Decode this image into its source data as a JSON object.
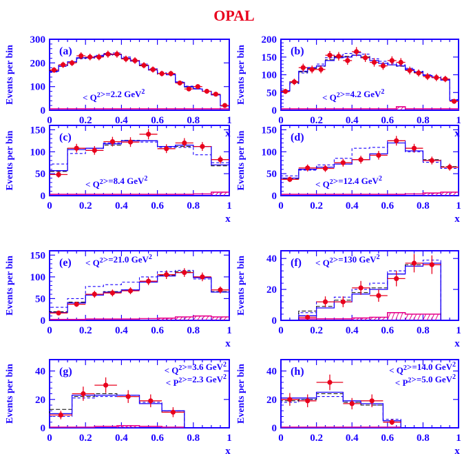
{
  "figure": {
    "title": "OPAL",
    "colors": {
      "frame": "#1a00ff",
      "data": "#e8001c",
      "mc_solid": "#1a00ff",
      "mc_dashed": "#1a00ff",
      "mc_black": "#000000",
      "background": "#e6008a"
    }
  },
  "chart_data": [
    {
      "type": "histogram",
      "panel": "(a)",
      "annotation": "< Q²>=2.2 GeV²",
      "xlabel": "x",
      "ylabel": "Events per bin",
      "xlim": [
        0,
        1
      ],
      "ylim": [
        0,
        300
      ],
      "xticks": [
        "0",
        "0.2",
        "0.4",
        "0.6",
        "0.8",
        "1"
      ],
      "yticks": [
        "0",
        "100",
        "200",
        "300"
      ],
      "ytick_values": [
        0,
        100,
        200,
        300
      ],
      "bin_edges": [
        0,
        0.05,
        0.1,
        0.15,
        0.2,
        0.25,
        0.3,
        0.35,
        0.4,
        0.45,
        0.5,
        0.55,
        0.6,
        0.65,
        0.7,
        0.75,
        0.8,
        0.85,
        0.9,
        0.95,
        1.0
      ],
      "data": {
        "x": [
          0.025,
          0.075,
          0.125,
          0.175,
          0.225,
          0.275,
          0.325,
          0.375,
          0.425,
          0.475,
          0.525,
          0.575,
          0.625,
          0.675,
          0.725,
          0.775,
          0.825,
          0.875,
          0.925,
          0.975
        ],
        "y": [
          170,
          192,
          200,
          230,
          225,
          225,
          237,
          237,
          217,
          210,
          190,
          172,
          155,
          155,
          115,
          90,
          100,
          80,
          68,
          20
        ],
        "yerr": [
          12,
          13,
          13,
          15,
          14,
          14,
          15,
          15,
          14,
          14,
          13,
          13,
          12,
          12,
          10,
          9,
          10,
          9,
          8,
          4
        ]
      },
      "mc_solid": [
        165,
        190,
        205,
        222,
        222,
        228,
        235,
        235,
        220,
        208,
        190,
        170,
        155,
        150,
        118,
        100,
        90,
        80,
        65,
        18
      ],
      "mc_dashed": [
        162,
        185,
        205,
        218,
        220,
        232,
        240,
        242,
        225,
        212,
        195,
        175,
        158,
        152,
        120,
        102,
        92,
        80,
        66,
        20
      ],
      "mc_black": [
        168,
        188,
        202,
        220,
        224,
        226,
        232,
        236,
        218,
        208,
        188,
        170,
        152,
        150,
        116,
        98,
        90,
        80,
        66,
        19
      ],
      "background": [
        6,
        6,
        6,
        6,
        6,
        6,
        6,
        6,
        6,
        6,
        6,
        6,
        6,
        6,
        6,
        6,
        6,
        6,
        6,
        6
      ]
    },
    {
      "type": "histogram",
      "panel": "(b)",
      "annotation": "< Q²>=4.2 GeV²",
      "xlabel": "x",
      "ylabel": "Events per bin",
      "xlim": [
        0,
        1
      ],
      "ylim": [
        0,
        200
      ],
      "xticks": [
        "0",
        "0.2",
        "0.4",
        "0.6",
        "0.8",
        "1"
      ],
      "yticks": [
        "0",
        "50",
        "100",
        "150",
        "200"
      ],
      "ytick_values": [
        0,
        50,
        100,
        150,
        200
      ],
      "bin_edges": [
        0,
        0.05,
        0.1,
        0.15,
        0.2,
        0.25,
        0.3,
        0.35,
        0.4,
        0.45,
        0.5,
        0.55,
        0.6,
        0.65,
        0.7,
        0.75,
        0.8,
        0.85,
        0.9,
        0.95,
        1.0
      ],
      "data": {
        "x": [
          0.025,
          0.075,
          0.125,
          0.175,
          0.225,
          0.275,
          0.325,
          0.375,
          0.425,
          0.475,
          0.525,
          0.575,
          0.625,
          0.675,
          0.725,
          0.775,
          0.825,
          0.875,
          0.925,
          0.975
        ],
        "y": [
          53,
          80,
          120,
          115,
          115,
          155,
          152,
          140,
          165,
          148,
          135,
          125,
          140,
          135,
          112,
          105,
          95,
          92,
          88,
          25
        ],
        "yerr": [
          7,
          9,
          11,
          11,
          11,
          12,
          12,
          12,
          13,
          12,
          12,
          11,
          12,
          12,
          11,
          10,
          10,
          10,
          9,
          5
        ]
      },
      "mc_solid": [
        55,
        80,
        110,
        120,
        125,
        140,
        148,
        150,
        155,
        148,
        140,
        132,
        128,
        125,
        115,
        108,
        98,
        92,
        85,
        28
      ],
      "mc_dashed": [
        52,
        75,
        105,
        115,
        130,
        148,
        155,
        160,
        162,
        158,
        145,
        138,
        132,
        128,
        118,
        110,
        100,
        95,
        88,
        30
      ],
      "mc_black": [
        54,
        78,
        108,
        118,
        124,
        142,
        150,
        152,
        156,
        150,
        140,
        132,
        128,
        124,
        114,
        106,
        98,
        92,
        86,
        28
      ],
      "background": [
        4,
        4,
        4,
        4,
        4,
        4,
        4,
        4,
        4,
        4,
        4,
        4,
        4,
        10,
        4,
        4,
        4,
        4,
        4,
        4
      ]
    },
    {
      "type": "histogram",
      "panel": "(c)",
      "annotation": "< Q²>=8.4 GeV²",
      "xlabel": "x",
      "ylabel": "Events per bin",
      "xlim": [
        0,
        1
      ],
      "ylim": [
        0,
        160
      ],
      "xticks": [
        "0",
        "0.2",
        "0.4",
        "0.6",
        "0.8",
        "1"
      ],
      "yticks": [
        "0",
        "50",
        "100",
        "150"
      ],
      "ytick_values": [
        0,
        50,
        100,
        150
      ],
      "bin_edges": [
        0,
        0.1,
        0.2,
        0.3,
        0.4,
        0.5,
        0.6,
        0.7,
        0.8,
        0.9,
        1.0
      ],
      "data": {
        "x": [
          0.05,
          0.15,
          0.25,
          0.35,
          0.45,
          0.55,
          0.65,
          0.75,
          0.85,
          0.95
        ],
        "y": [
          48,
          108,
          103,
          123,
          122,
          140,
          107,
          120,
          112,
          82
        ],
        "yerr": [
          7,
          10,
          10,
          11,
          11,
          12,
          10,
          11,
          10,
          9
        ]
      },
      "mc_solid": [
        57,
        105,
        108,
        118,
        125,
        125,
        112,
        115,
        112,
        70
      ],
      "mc_dashed": [
        72,
        96,
        103,
        120,
        122,
        122,
        110,
        110,
        93,
        75
      ],
      "mc_black": [
        55,
        108,
        108,
        115,
        126,
        125,
        112,
        112,
        112,
        68
      ],
      "background": [
        3,
        3,
        3,
        3,
        3,
        3,
        3,
        3,
        4,
        8
      ]
    },
    {
      "type": "histogram",
      "panel": "(d)",
      "annotation": "< Q²>=12.4 GeV²",
      "xlabel": "x",
      "ylabel": "Events per bin",
      "xlim": [
        0,
        1
      ],
      "ylim": [
        0,
        160
      ],
      "xticks": [
        "0",
        "0.2",
        "0.4",
        "0.6",
        "0.8",
        "1"
      ],
      "yticks": [
        "0",
        "50",
        "100",
        "150"
      ],
      "ytick_values": [
        0,
        50,
        100,
        150
      ],
      "bin_edges": [
        0,
        0.1,
        0.2,
        0.3,
        0.4,
        0.5,
        0.6,
        0.7,
        0.8,
        0.9,
        1.0
      ],
      "data": {
        "x": [
          0.05,
          0.15,
          0.25,
          0.35,
          0.45,
          0.55,
          0.65,
          0.75,
          0.85,
          0.95
        ],
        "y": [
          37,
          63,
          62,
          75,
          82,
          92,
          125,
          108,
          80,
          65
        ],
        "yerr": [
          6,
          8,
          8,
          9,
          9,
          10,
          11,
          10,
          9,
          8
        ]
      },
      "mc_solid": [
        40,
        60,
        65,
        72,
        82,
        95,
        120,
        102,
        80,
        65
      ],
      "mc_dashed": [
        45,
        58,
        70,
        85,
        108,
        110,
        125,
        100,
        76,
        62
      ],
      "mc_black": [
        38,
        60,
        65,
        72,
        82,
        95,
        120,
        102,
        82,
        66
      ],
      "background": [
        3,
        3,
        3,
        3,
        3,
        3,
        3,
        4,
        6,
        8
      ]
    },
    {
      "type": "histogram",
      "panel": "(e)",
      "annotation": "< Q²>=21.0 GeV²",
      "xlabel": "x",
      "ylabel": "Events per bin",
      "xlim": [
        0,
        1
      ],
      "ylim": [
        0,
        160
      ],
      "xticks": [
        "0",
        "0.2",
        "0.4",
        "0.6",
        "0.8",
        "1"
      ],
      "yticks": [
        "0",
        "50",
        "100",
        "150"
      ],
      "ytick_values": [
        0,
        50,
        100,
        150
      ],
      "bin_edges": [
        0,
        0.1,
        0.2,
        0.3,
        0.4,
        0.5,
        0.6,
        0.7,
        0.8,
        0.9,
        1.0
      ],
      "data": {
        "x": [
          0.05,
          0.15,
          0.25,
          0.35,
          0.45,
          0.55,
          0.65,
          0.75,
          0.85,
          0.95
        ],
        "y": [
          17,
          37,
          60,
          63,
          68,
          90,
          105,
          110,
          100,
          70
        ],
        "yerr": [
          4,
          6,
          8,
          8,
          8,
          9,
          10,
          10,
          10,
          8
        ]
      },
      "mc_solid": [
        18,
        40,
        58,
        65,
        70,
        88,
        102,
        110,
        98,
        65
      ],
      "mc_dashed": [
        30,
        50,
        78,
        82,
        88,
        100,
        112,
        115,
        95,
        65
      ],
      "mc_black": [
        20,
        42,
        60,
        66,
        70,
        88,
        104,
        112,
        100,
        66
      ],
      "background": [
        2,
        2,
        3,
        3,
        3,
        4,
        5,
        8,
        10,
        8
      ]
    },
    {
      "type": "histogram",
      "panel": "(f)",
      "annotation": "< Q²>=130 GeV²",
      "xlabel": "x",
      "ylabel": "Events per bin",
      "xlim": [
        0,
        1
      ],
      "ylim": [
        0,
        45
      ],
      "xticks": [
        "0",
        "0.2",
        "0.4",
        "0.6",
        "0.8",
        "1"
      ],
      "yticks": [
        "0",
        "20",
        "40"
      ],
      "ytick_values": [
        0,
        20,
        40
      ],
      "bin_edges": [
        0.1,
        0.2,
        0.3,
        0.4,
        0.5,
        0.6,
        0.7,
        0.8,
        0.9
      ],
      "data": {
        "x": [
          0.15,
          0.25,
          0.35,
          0.45,
          0.55,
          0.65,
          0.75,
          0.85
        ],
        "y": [
          2,
          12,
          12,
          21,
          16,
          27,
          37,
          36
        ],
        "yerr": [
          1.5,
          3.5,
          3.5,
          4.5,
          4,
          5,
          6,
          6
        ]
      },
      "mc_solid": [
        3,
        8,
        12,
        17,
        20,
        30,
        35,
        37
      ],
      "mc_dashed": [
        5,
        12,
        15,
        20,
        24,
        32,
        37,
        39
      ],
      "mc_black": [
        6,
        9,
        13,
        18,
        21,
        30,
        36,
        37
      ],
      "background": [
        1,
        1,
        1,
        1.5,
        2,
        5,
        4,
        4
      ]
    },
    {
      "type": "histogram",
      "panel": "(g)",
      "annotation": "< Q²>=3.6 GeV²",
      "annotation2": "< P²>=2.3 GeV²",
      "xlabel": "x",
      "ylabel": "Events per bin",
      "xlim": [
        0,
        1
      ],
      "ylim": [
        0,
        48
      ],
      "xticks": [
        "0",
        "0.2",
        "0.4",
        "0.6",
        "0.8",
        "1"
      ],
      "yticks": [
        "0",
        "20",
        "40"
      ],
      "ytick_values": [
        0,
        20,
        40
      ],
      "bin_edges": [
        0,
        0.125,
        0.25,
        0.375,
        0.5,
        0.625,
        0.75
      ],
      "data": {
        "x": [
          0.0625,
          0.1875,
          0.3125,
          0.4375,
          0.5625,
          0.6875
        ],
        "y": [
          9,
          24,
          30,
          22,
          19,
          11
        ],
        "yerr": [
          3,
          5,
          5.5,
          4.5,
          4.5,
          3.5
        ]
      },
      "mc_solid": [
        10,
        23,
        23,
        23,
        17,
        12
      ],
      "mc_dashed": [
        8,
        21,
        22,
        22,
        18,
        12
      ],
      "mc_black": [
        13,
        22,
        24,
        23,
        17,
        11
      ],
      "background": [
        0.5,
        0.5,
        1,
        1.5,
        1,
        0.5
      ]
    },
    {
      "type": "histogram",
      "panel": "(h)",
      "annotation": "< Q²>=14.0 GeV²",
      "annotation2": "< P²>=5.0 GeV²",
      "xlabel": "x",
      "ylabel": "Events per bin",
      "xlim": [
        0,
        1
      ],
      "ylim": [
        0,
        48
      ],
      "xticks": [
        "0",
        "0.2",
        "0.4",
        "0.6",
        "0.8",
        "1"
      ],
      "yticks": [
        "0",
        "20",
        "40"
      ],
      "ytick_values": [
        0,
        20,
        40
      ],
      "bin_edges": [
        0,
        0.1,
        0.2,
        0.35,
        0.45,
        0.575,
        0.675
      ],
      "data": {
        "x": [
          0.05,
          0.15,
          0.275,
          0.4,
          0.5125,
          0.625
        ],
        "y": [
          20,
          19,
          32,
          17,
          19,
          4
        ],
        "yerr": [
          4.5,
          4.5,
          5.5,
          4,
          4.5,
          2
        ]
      },
      "mc_solid": [
        21,
        21,
        25,
        19,
        17,
        5
      ],
      "mc_dashed": [
        18,
        20,
        22,
        18,
        16,
        6
      ],
      "mc_black": [
        19,
        20,
        24,
        18,
        16,
        5
      ],
      "background": [
        0.5,
        0.5,
        0.5,
        0.5,
        0.5,
        0.5
      ]
    }
  ]
}
